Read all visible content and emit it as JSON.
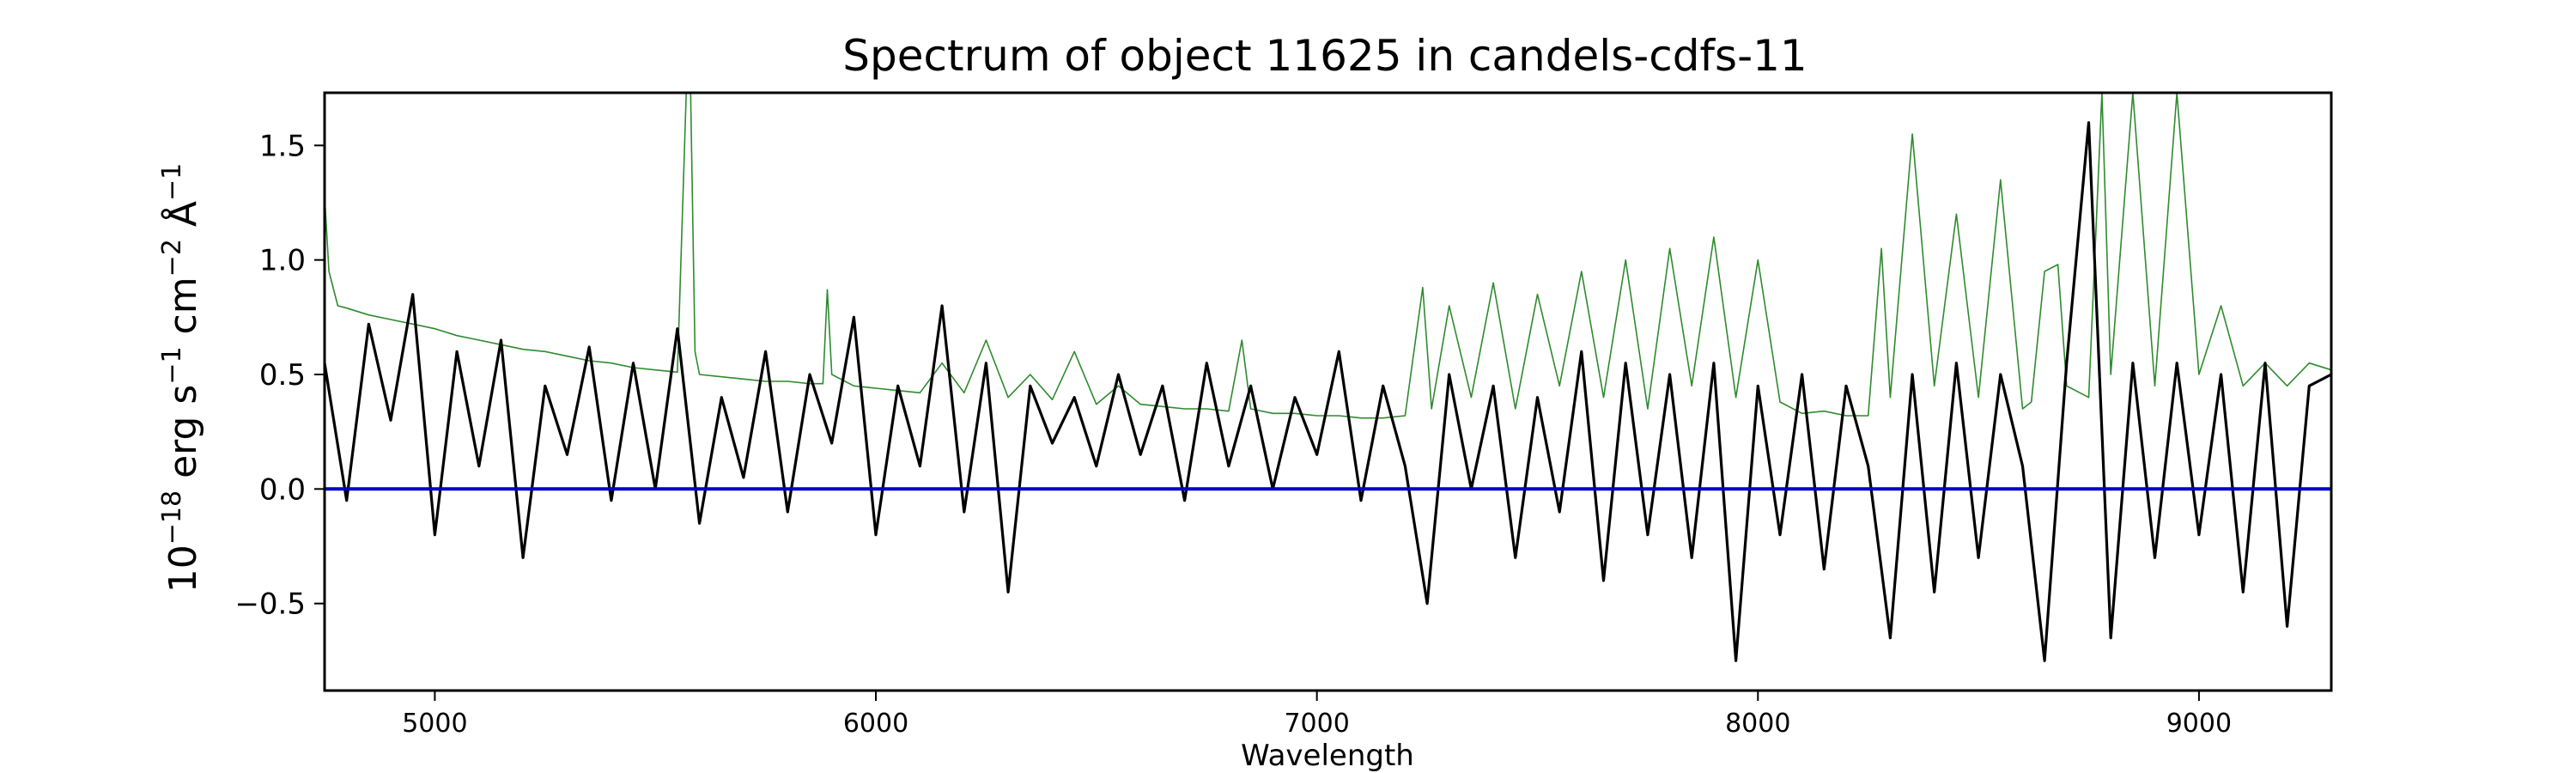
{
  "chart_data": {
    "type": "line",
    "title": "Spectrum of object 11625 in candels-cdfs-11",
    "xlabel": "Wavelength",
    "ylabel": {
      "base": "10",
      "base_exp": "−18",
      "erg": "erg s",
      "s_exp": "−1",
      "cm": "cm",
      "cm_exp": "−2",
      "angstrom": "Å",
      "a_exp": "−1"
    },
    "xlim": [
      4750,
      9300
    ],
    "ylim": [
      -0.88,
      1.73
    ],
    "xticks": [
      {
        "value": 5000,
        "label": "5000"
      },
      {
        "value": 6000,
        "label": "6000"
      },
      {
        "value": 7000,
        "label": "7000"
      },
      {
        "value": 8000,
        "label": "8000"
      },
      {
        "value": 9000,
        "label": "9000"
      }
    ],
    "yticks": [
      {
        "value": -0.5,
        "label": "−0.5"
      },
      {
        "value": 0.0,
        "label": "0.0"
      },
      {
        "value": 0.5,
        "label": "0.5"
      },
      {
        "value": 1.0,
        "label": "1.0"
      },
      {
        "value": 1.5,
        "label": "1.5"
      }
    ],
    "grid": false,
    "series": [
      {
        "role": "flux",
        "color": "#000000",
        "x": [
          4750,
          4800,
          4850,
          4900,
          4950,
          5000,
          5050,
          5100,
          5150,
          5200,
          5250,
          5300,
          5350,
          5400,
          5450,
          5500,
          5550,
          5600,
          5650,
          5700,
          5750,
          5800,
          5850,
          5900,
          5950,
          6000,
          6050,
          6100,
          6150,
          6200,
          6250,
          6300,
          6350,
          6400,
          6450,
          6500,
          6550,
          6600,
          6650,
          6700,
          6750,
          6800,
          6850,
          6900,
          6950,
          7000,
          7050,
          7100,
          7150,
          7200,
          7250,
          7300,
          7350,
          7400,
          7450,
          7500,
          7550,
          7600,
          7650,
          7700,
          7750,
          7800,
          7850,
          7900,
          7950,
          8000,
          8050,
          8100,
          8150,
          8200,
          8250,
          8300,
          8350,
          8400,
          8450,
          8500,
          8550,
          8600,
          8650,
          8700,
          8750,
          8800,
          8850,
          8900,
          8950,
          9000,
          9050,
          9100,
          9150,
          9200,
          9250,
          9300
        ],
        "y": [
          0.55,
          -0.05,
          0.72,
          0.3,
          0.85,
          -0.2,
          0.6,
          0.1,
          0.65,
          -0.3,
          0.45,
          0.15,
          0.62,
          -0.05,
          0.55,
          0.0,
          0.7,
          -0.15,
          0.4,
          0.05,
          0.6,
          -0.1,
          0.5,
          0.2,
          0.75,
          -0.2,
          0.45,
          0.1,
          0.8,
          -0.1,
          0.55,
          -0.45,
          0.45,
          0.2,
          0.4,
          0.1,
          0.5,
          0.15,
          0.45,
          -0.05,
          0.55,
          0.1,
          0.45,
          0.0,
          0.4,
          0.15,
          0.6,
          -0.05,
          0.45,
          0.1,
          -0.5,
          0.5,
          0.0,
          0.45,
          -0.3,
          0.4,
          -0.1,
          0.6,
          -0.4,
          0.55,
          -0.2,
          0.5,
          -0.3,
          0.55,
          -0.75,
          0.45,
          -0.2,
          0.5,
          -0.35,
          0.45,
          0.1,
          -0.65,
          0.5,
          -0.45,
          0.55,
          -0.3,
          0.5,
          0.1,
          -0.75,
          0.55,
          1.6,
          -0.65,
          0.55,
          -0.3,
          0.55,
          -0.2,
          0.5,
          -0.45,
          0.55,
          -0.6,
          0.45,
          0.5
        ]
      },
      {
        "role": "error",
        "color": "#2e8b2e",
        "x": [
          4750,
          4760,
          4780,
          4800,
          4850,
          4900,
          4950,
          5000,
          5050,
          5100,
          5150,
          5200,
          5250,
          5300,
          5350,
          5400,
          5450,
          5500,
          5550,
          5570,
          5580,
          5590,
          5600,
          5650,
          5700,
          5750,
          5800,
          5850,
          5880,
          5890,
          5900,
          5950,
          6000,
          6050,
          6100,
          6150,
          6200,
          6250,
          6300,
          6350,
          6400,
          6450,
          6500,
          6550,
          6600,
          6650,
          6700,
          6750,
          6800,
          6830,
          6850,
          6900,
          6950,
          7000,
          7050,
          7100,
          7150,
          7200,
          7240,
          7260,
          7300,
          7350,
          7400,
          7450,
          7500,
          7550,
          7600,
          7650,
          7700,
          7750,
          7800,
          7850,
          7900,
          7950,
          8000,
          8050,
          8100,
          8150,
          8200,
          8250,
          8280,
          8300,
          8350,
          8400,
          8450,
          8500,
          8550,
          8600,
          8620,
          8650,
          8680,
          8700,
          8750,
          8780,
          8800,
          8850,
          8900,
          8950,
          9000,
          9050,
          9100,
          9150,
          9200,
          9250,
          9300
        ],
        "y": [
          1.28,
          0.95,
          0.8,
          0.79,
          0.76,
          0.74,
          0.72,
          0.7,
          0.67,
          0.65,
          0.63,
          0.61,
          0.6,
          0.58,
          0.56,
          0.55,
          0.53,
          0.52,
          0.51,
          1.73,
          1.73,
          0.6,
          0.5,
          0.49,
          0.48,
          0.47,
          0.47,
          0.46,
          0.46,
          0.87,
          0.5,
          0.45,
          0.44,
          0.43,
          0.42,
          0.55,
          0.42,
          0.65,
          0.4,
          0.5,
          0.39,
          0.6,
          0.37,
          0.45,
          0.37,
          0.36,
          0.35,
          0.35,
          0.34,
          0.65,
          0.35,
          0.33,
          0.33,
          0.32,
          0.32,
          0.31,
          0.31,
          0.32,
          0.88,
          0.35,
          0.8,
          0.4,
          0.9,
          0.35,
          0.85,
          0.45,
          0.95,
          0.4,
          1.0,
          0.35,
          1.05,
          0.45,
          1.1,
          0.4,
          1.0,
          0.38,
          0.33,
          0.34,
          0.32,
          0.32,
          1.05,
          0.4,
          1.55,
          0.45,
          1.2,
          0.4,
          1.35,
          0.35,
          0.38,
          0.95,
          0.98,
          0.45,
          0.4,
          1.73,
          0.5,
          1.73,
          0.45,
          1.73,
          0.5,
          0.8,
          0.45,
          0.55,
          0.45,
          0.55,
          0.52
        ]
      },
      {
        "role": "zero",
        "color": "#0000cc",
        "x": [
          4750,
          9300
        ],
        "y": [
          0.0,
          0.0
        ]
      }
    ]
  }
}
